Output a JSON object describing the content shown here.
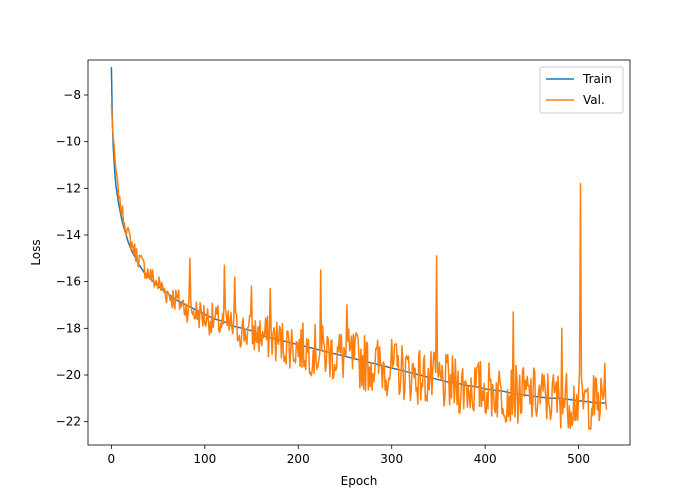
{
  "chart_data": {
    "type": "line",
    "title": "",
    "xlabel": "Epoch",
    "ylabel": "Loss",
    "xlim": [
      -25,
      555
    ],
    "ylim": [
      -23,
      -6.5
    ],
    "xticks": [
      0,
      100,
      200,
      300,
      400,
      500
    ],
    "yticks": [
      -22,
      -20,
      -18,
      -16,
      -14,
      -12,
      -10,
      -8
    ],
    "legend_placement": "top-right",
    "grid": false,
    "series": [
      {
        "name": "Train",
        "color": "#1f77b4",
        "x": [
          0,
          1,
          2,
          3,
          4,
          5,
          6,
          8,
          10,
          12,
          15,
          18,
          22,
          26,
          30,
          35,
          40,
          50,
          60,
          70,
          80,
          90,
          100,
          110,
          120,
          130,
          140,
          150,
          160,
          170,
          180,
          190,
          200,
          210,
          220,
          230,
          240,
          250,
          260,
          270,
          280,
          290,
          300,
          310,
          320,
          330,
          340,
          350,
          360,
          370,
          380,
          390,
          400,
          410,
          420,
          430,
          440,
          450,
          460,
          470,
          480,
          490,
          500,
          510,
          520,
          530
        ],
        "y": [
          -6.8,
          -9.0,
          -10.2,
          -10.9,
          -11.5,
          -11.9,
          -12.2,
          -12.7,
          -13.1,
          -13.5,
          -13.9,
          -14.3,
          -14.7,
          -15.0,
          -15.3,
          -15.6,
          -15.8,
          -16.2,
          -16.5,
          -16.8,
          -17.0,
          -17.2,
          -17.4,
          -17.6,
          -17.7,
          -17.9,
          -18.0,
          -18.1,
          -18.3,
          -18.4,
          -18.5,
          -18.6,
          -18.7,
          -18.8,
          -18.9,
          -19.0,
          -19.1,
          -19.2,
          -19.3,
          -19.4,
          -19.5,
          -19.6,
          -19.7,
          -19.8,
          -19.9,
          -20.0,
          -20.1,
          -20.2,
          -20.3,
          -20.35,
          -20.45,
          -20.5,
          -20.6,
          -20.65,
          -20.7,
          -20.8,
          -20.85,
          -20.9,
          -20.95,
          -21.0,
          -21.0,
          -21.05,
          -21.1,
          -21.15,
          -21.2,
          -21.2
        ]
      },
      {
        "name": "Val.",
        "color": "#ff7f0e",
        "spikes": [
          [
            84,
            -15.0
          ],
          [
            121,
            -15.3
          ],
          [
            132,
            -15.8
          ],
          [
            150,
            -16.2
          ],
          [
            170,
            -16.3
          ],
          [
            224,
            -15.5
          ],
          [
            252,
            -17.0
          ],
          [
            348,
            -14.9
          ],
          [
            430,
            -17.3
          ],
          [
            482,
            -18.0
          ],
          [
            502,
            -11.8
          ],
          [
            528,
            -19.5
          ]
        ],
        "trend": [
          [
            0,
            -8.4
          ],
          [
            2,
            -9.8
          ],
          [
            4,
            -10.9
          ],
          [
            6,
            -11.6
          ],
          [
            8,
            -12.3
          ],
          [
            12,
            -13.1
          ],
          [
            18,
            -14.0
          ],
          [
            25,
            -14.7
          ],
          [
            35,
            -15.4
          ],
          [
            45,
            -15.9
          ],
          [
            60,
            -16.5
          ],
          [
            80,
            -17.1
          ],
          [
            100,
            -17.5
          ],
          [
            125,
            -17.9
          ],
          [
            150,
            -18.2
          ],
          [
            175,
            -18.5
          ],
          [
            200,
            -18.8
          ],
          [
            225,
            -19.0
          ],
          [
            250,
            -19.2
          ],
          [
            275,
            -19.5
          ],
          [
            300,
            -19.7
          ],
          [
            325,
            -20.0
          ],
          [
            350,
            -20.3
          ],
          [
            375,
            -20.5
          ],
          [
            400,
            -20.6
          ],
          [
            425,
            -20.8
          ],
          [
            450,
            -20.9
          ],
          [
            475,
            -21.0
          ],
          [
            500,
            -21.1
          ],
          [
            530,
            -21.2
          ]
        ]
      }
    ]
  }
}
